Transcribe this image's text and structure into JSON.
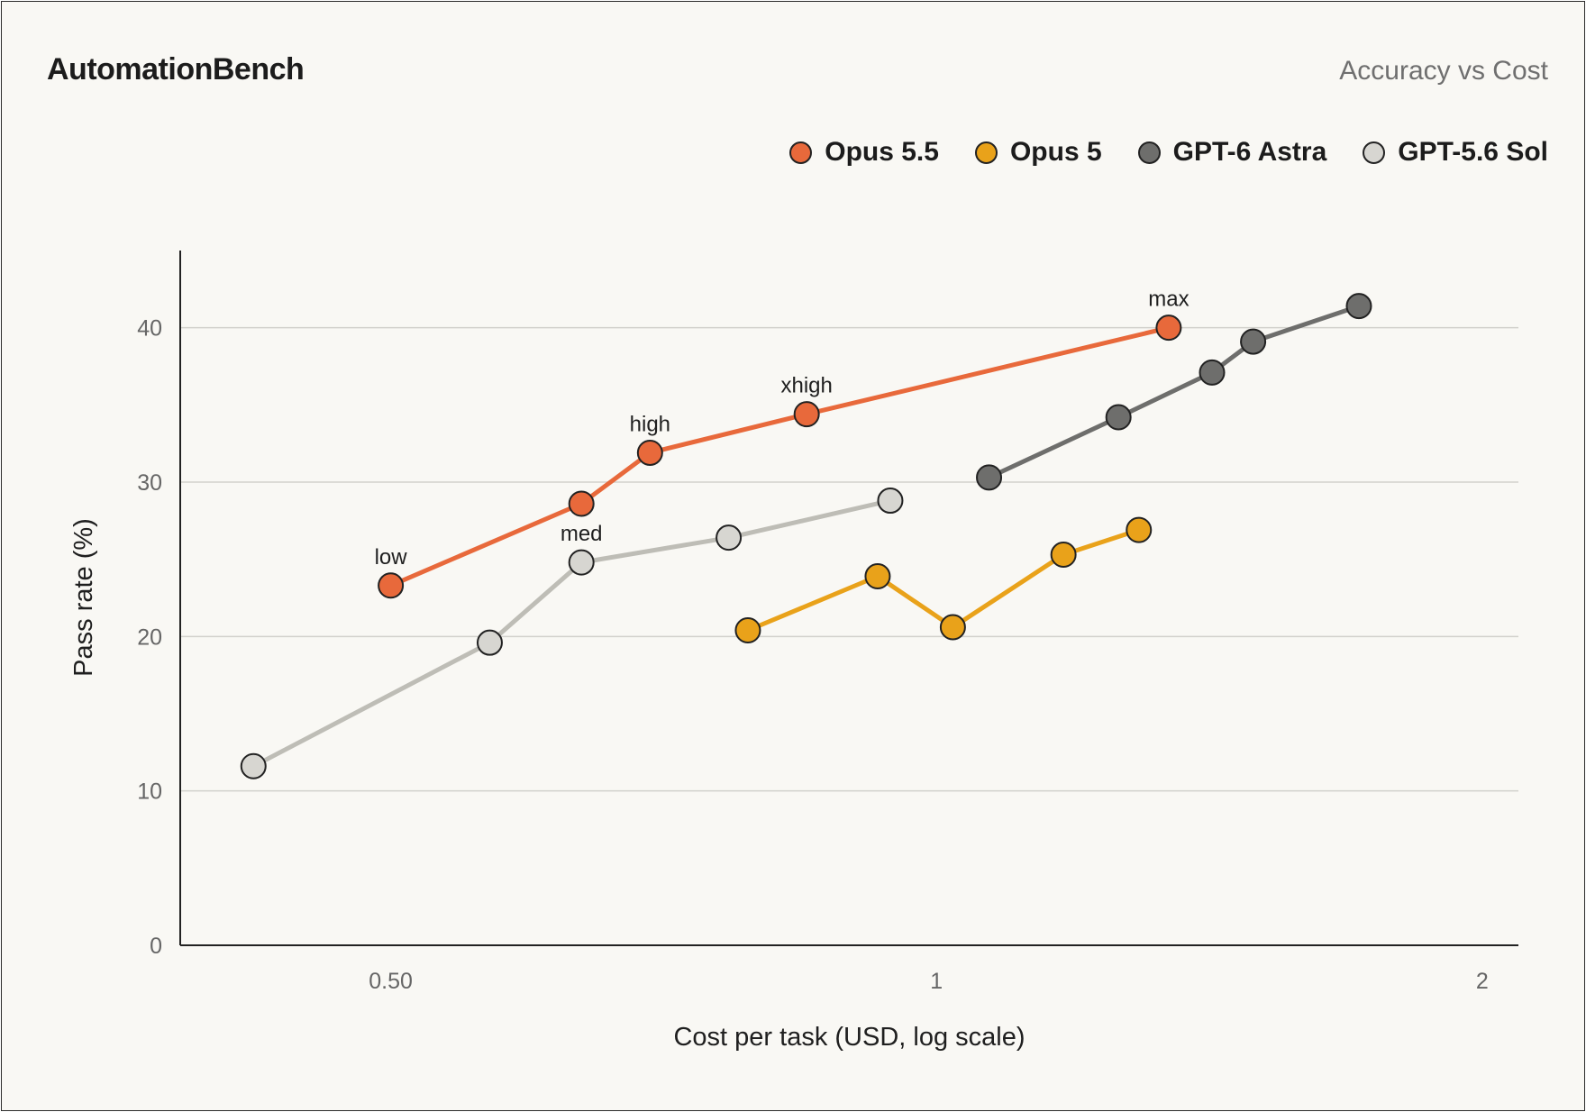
{
  "chart_data": {
    "type": "line",
    "title": "AutomationBench",
    "subtitle": "Accuracy vs Cost",
    "xlabel": "Cost per task (USD, log scale)",
    "ylabel": "Pass rate (%)",
    "xscale": "log",
    "xlim": [
      0.3827,
      2.094
    ],
    "ylim": [
      0,
      45
    ],
    "xticks": [
      {
        "value": 0.5,
        "label": "0.50"
      },
      {
        "value": 1,
        "label": "1"
      },
      {
        "value": 2,
        "label": "2"
      }
    ],
    "yticks": [
      {
        "value": 0,
        "label": "0"
      },
      {
        "value": 10,
        "label": "10"
      },
      {
        "value": 20,
        "label": "20"
      },
      {
        "value": 30,
        "label": "30"
      },
      {
        "value": 40,
        "label": "40"
      }
    ],
    "grid": true,
    "legend_position": "top-right",
    "series": [
      {
        "name": "Opus 5.5",
        "color": "#e8693b",
        "x": [
          0.5,
          0.637,
          0.695,
          0.848,
          1.343
        ],
        "y": [
          23.3,
          28.6,
          31.9,
          34.4,
          40.0
        ],
        "labels": [
          "low",
          "",
          "high",
          "xhigh",
          "max"
        ]
      },
      {
        "name": "Opus 5",
        "color": "#e9a21a",
        "x": [
          0.787,
          0.928,
          1.021,
          1.175,
          1.293
        ],
        "y": [
          20.4,
          23.9,
          20.6,
          25.3,
          26.9
        ]
      },
      {
        "name": "GPT-6 Astra",
        "color": "#6e6e6c",
        "x": [
          1.069,
          1.26,
          1.419,
          1.495,
          1.71
        ],
        "y": [
          30.3,
          34.2,
          37.1,
          39.1,
          41.4
        ]
      },
      {
        "name": "GPT-5.6 Sol",
        "color": "#d7d6d1",
        "line_color": "#bebdb6",
        "x": [
          0.42,
          0.567,
          0.637,
          0.768,
          0.943
        ],
        "y": [
          11.6,
          19.6,
          24.8,
          26.4,
          28.8
        ],
        "labels": [
          "",
          "",
          "med",
          "",
          ""
        ]
      }
    ]
  }
}
